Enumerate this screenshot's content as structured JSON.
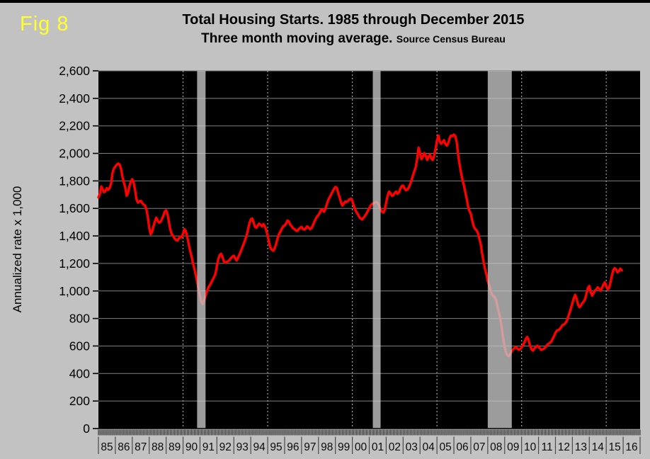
{
  "figure_label": "Fig 8",
  "title": "Total Housing Starts. 1985 through December 2015",
  "subtitle": "Three month moving average.",
  "subtitle_source": "Source Census Bureau",
  "y_axis_title": "Annualized rate x 1,000",
  "colors": {
    "page_background": "#c2c2c2",
    "plot_background": "#000000",
    "line": "#ff0000",
    "recession_band": "#c8c8c8",
    "h_gridline": "#7f7f7f",
    "v_gridline": "#a0a0a0",
    "figure_label": "#ffff2e",
    "text": "#000000"
  },
  "chart_data": {
    "type": "line",
    "title": "Total Housing Starts. 1985 through December 2015",
    "subtitle": "Three month moving average. Source Census Bureau",
    "xlabel": "",
    "ylabel": "Annualized rate x 1,000",
    "ylim": [
      0,
      2600
    ],
    "y_tick_step": 200,
    "y_tick_labels": [
      "0",
      "200",
      "400",
      "600",
      "800",
      "1,000",
      "1,200",
      "1,400",
      "1,600",
      "1,800",
      "2,000",
      "2,200",
      "2,400",
      "2,600"
    ],
    "x_domain_years": [
      1985,
      2017
    ],
    "x_year_labels": [
      "85",
      "86",
      "87",
      "88",
      "89",
      "90",
      "91",
      "92",
      "93",
      "94",
      "95",
      "96",
      "97",
      "98",
      "99",
      "00",
      "01",
      "02",
      "03",
      "04",
      "05",
      "06",
      "07",
      "08",
      "09",
      "10",
      "11",
      "12",
      "13",
      "14",
      "15",
      "16"
    ],
    "grid_horizontal": true,
    "grid_vertical_years": [
      1990,
      1995,
      2000,
      2005,
      2010,
      2015
    ],
    "legend_position": "none",
    "recession_bands": [
      [
        1990.83,
        1991.33
      ],
      [
        2001.21,
        2001.67
      ],
      [
        2008.0,
        2009.42
      ]
    ],
    "series": [
      {
        "name": "Total housing starts, 3-month moving average (annualized rate x 1,000)",
        "frequency": "monthly",
        "start_year": 1985,
        "start_month": 1,
        "end_year": 2015,
        "end_month": 12,
        "values": [
          1680,
          1705,
          1760,
          1738,
          1718,
          1728,
          1748,
          1735,
          1748,
          1782,
          1858,
          1890,
          1905,
          1918,
          1926,
          1920,
          1888,
          1832,
          1788,
          1752,
          1692,
          1712,
          1762,
          1796,
          1812,
          1788,
          1732,
          1665,
          1642,
          1650,
          1655,
          1640,
          1628,
          1622,
          1595,
          1540,
          1462,
          1412,
          1428,
          1470,
          1505,
          1532,
          1510,
          1496,
          1502,
          1522,
          1546,
          1576,
          1586,
          1558,
          1500,
          1445,
          1412,
          1400,
          1382,
          1370,
          1366,
          1382,
          1396,
          1390,
          1416,
          1450,
          1434,
          1390,
          1340,
          1292,
          1252,
          1202,
          1162,
          1116,
          1066,
          1010,
          962,
          920,
          906,
          932,
          966,
          1000,
          1026,
          1042,
          1062,
          1082,
          1102,
          1126,
          1182,
          1232,
          1262,
          1270,
          1246,
          1212,
          1206,
          1212,
          1216,
          1226,
          1240,
          1250,
          1256,
          1236,
          1222,
          1242,
          1266,
          1290,
          1316,
          1342,
          1372,
          1402,
          1446,
          1492,
          1520,
          1527,
          1500,
          1466,
          1460,
          1476,
          1490,
          1480,
          1470,
          1486,
          1470,
          1440,
          1400,
          1350,
          1312,
          1300,
          1292,
          1312,
          1342,
          1382,
          1412,
          1432,
          1452,
          1470,
          1476,
          1490,
          1512,
          1505,
          1482,
          1470,
          1456,
          1450,
          1440,
          1436,
          1450,
          1460,
          1466,
          1450,
          1446,
          1456,
          1470,
          1460,
          1450,
          1456,
          1476,
          1502,
          1522,
          1542,
          1552,
          1572,
          1592,
          1586,
          1576,
          1600,
          1632,
          1662,
          1682,
          1702,
          1722,
          1742,
          1756,
          1750,
          1710,
          1680,
          1642,
          1620,
          1636,
          1650,
          1646,
          1656,
          1666,
          1670,
          1656,
          1620,
          1592,
          1572,
          1556,
          1536,
          1526,
          1520,
          1532,
          1546,
          1562,
          1582,
          1602,
          1622,
          1632,
          1636,
          1642,
          1646,
          1640,
          1620,
          1596,
          1576,
          1570,
          1592,
          1642,
          1692,
          1722,
          1712,
          1692,
          1696,
          1712,
          1722,
          1706,
          1716,
          1742,
          1762,
          1766,
          1746,
          1732,
          1736,
          1752,
          1776,
          1806,
          1842,
          1872,
          1902,
          1962,
          2042,
          2002,
          1958,
          1976,
          2002,
          1986,
          1952,
          1976,
          1992,
          1962,
          1952,
          1982,
          2032,
          2092,
          2130,
          2086,
          2070,
          2082,
          2096,
          2066,
          2056,
          2076,
          2112,
          2130,
          2126,
          2136,
          2126,
          2082,
          1992,
          1922,
          1862,
          1812,
          1772,
          1722,
          1672,
          1616,
          1582,
          1562,
          1512,
          1472,
          1452,
          1442,
          1422,
          1382,
          1342,
          1272,
          1212,
          1162,
          1122,
          1072,
          1042,
          1002,
          972,
          962,
          956,
          932,
          882,
          842,
          792,
          722,
          652,
          592,
          552,
          532,
          526,
          542,
          562,
          576,
          586,
          592,
          582,
          572,
          576,
          592,
          606,
          626,
          652,
          666,
          642,
          602,
          576,
          566,
          582,
          592,
          602,
          596,
          582,
          572,
          576,
          582,
          592,
          606,
          616,
          622,
          632,
          652,
          672,
          696,
          712,
          716,
          722,
          736,
          752,
          756,
          766,
          782,
          812,
          842,
          876,
          912,
          948,
          972,
          942,
          902,
          882,
          892,
          912,
          922,
          942,
          982,
          1022,
          1036,
          992,
          966,
          986,
          1002,
          1012,
          1026,
          1016,
          1002,
          1022,
          1046,
          1062,
          1036,
          1012,
          1022,
          1062,
          1112,
          1152,
          1166,
          1156,
          1136,
          1146,
          1162,
          1150
        ]
      }
    ]
  }
}
